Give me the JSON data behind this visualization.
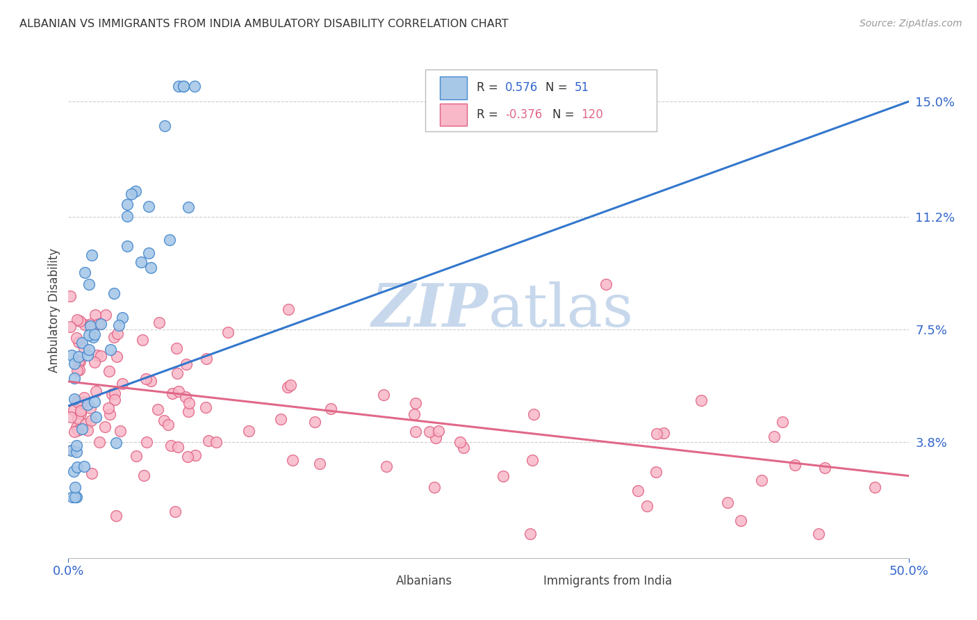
{
  "title": "ALBANIAN VS IMMIGRANTS FROM INDIA AMBULATORY DISABILITY CORRELATION CHART",
  "source": "Source: ZipAtlas.com",
  "ylabel": "Ambulatory Disability",
  "ytick_labels": [
    "15.0%",
    "11.2%",
    "7.5%",
    "3.8%"
  ],
  "ytick_values": [
    0.15,
    0.112,
    0.075,
    0.038
  ],
  "xmin": 0.0,
  "xmax": 0.5,
  "ymin": 0.0,
  "ymax": 0.163,
  "color_albanian_fill": "#a8c8e8",
  "color_albanian_edge": "#4488cc",
  "color_india_fill": "#f8b8c8",
  "color_india_edge": "#e06080",
  "color_line_albanian": "#3377cc",
  "color_line_india": "#e06888",
  "background_color": "#ffffff",
  "watermark_zip": "ZIP",
  "watermark_atlas": "atlas",
  "watermark_color": "#c8d8ec"
}
